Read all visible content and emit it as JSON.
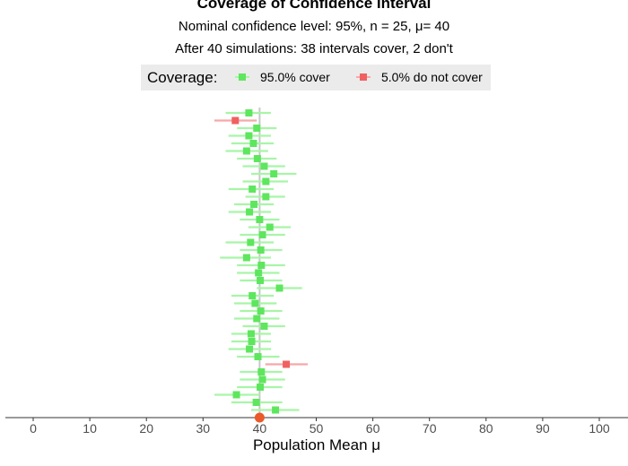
{
  "chart_data": {
    "type": "scatter",
    "title": "Coverage of Confidence Interval",
    "subtitle": "Nominal confidence level: 95%, n = 25, μ= 40",
    "subtitle2": "After 40 simulations: 38 intervals cover, 2 don't",
    "xlabel": "Population Mean μ",
    "xlim": [
      -5,
      105
    ],
    "xticks": [
      "0",
      "10",
      "20",
      "30",
      "40",
      "50",
      "60",
      "70",
      "80",
      "90",
      "100"
    ],
    "population_mean": 40,
    "legend": {
      "title": "Coverage:",
      "position": "top",
      "entries": [
        {
          "label": "95.0% cover",
          "color": "#33e633"
        },
        {
          "label": "5.0% do not cover",
          "color": "#f03c3c"
        }
      ]
    },
    "grid": false,
    "intervals": [
      {
        "mean": 38.1,
        "lower": 34.0,
        "upper": 42.0,
        "covers": true
      },
      {
        "mean": 35.7,
        "lower": 32.0,
        "upper": 39.5,
        "covers": false
      },
      {
        "mean": 39.5,
        "lower": 36.0,
        "upper": 43.0,
        "covers": true
      },
      {
        "mean": 38.1,
        "lower": 34.5,
        "upper": 42.0,
        "covers": true
      },
      {
        "mean": 38.9,
        "lower": 35.0,
        "upper": 42.5,
        "covers": true
      },
      {
        "mean": 37.7,
        "lower": 34.0,
        "upper": 41.5,
        "covers": true
      },
      {
        "mean": 39.6,
        "lower": 36.0,
        "upper": 43.0,
        "covers": true
      },
      {
        "mean": 40.8,
        "lower": 37.0,
        "upper": 44.5,
        "covers": true
      },
      {
        "mean": 42.5,
        "lower": 38.5,
        "upper": 46.5,
        "covers": true
      },
      {
        "mean": 41.1,
        "lower": 37.0,
        "upper": 45.0,
        "covers": true
      },
      {
        "mean": 38.7,
        "lower": 34.5,
        "upper": 42.5,
        "covers": true
      },
      {
        "mean": 41.1,
        "lower": 37.5,
        "upper": 44.5,
        "covers": true
      },
      {
        "mean": 39.0,
        "lower": 35.5,
        "upper": 42.5,
        "covers": true
      },
      {
        "mean": 38.2,
        "lower": 34.5,
        "upper": 42.0,
        "covers": true
      },
      {
        "mean": 40.0,
        "lower": 36.5,
        "upper": 43.5,
        "covers": true
      },
      {
        "mean": 41.8,
        "lower": 38.0,
        "upper": 45.5,
        "covers": true
      },
      {
        "mean": 40.5,
        "lower": 36.5,
        "upper": 44.5,
        "covers": true
      },
      {
        "mean": 38.4,
        "lower": 34.0,
        "upper": 42.5,
        "covers": true
      },
      {
        "mean": 40.2,
        "lower": 36.5,
        "upper": 44.0,
        "covers": true
      },
      {
        "mean": 37.7,
        "lower": 33.0,
        "upper": 42.0,
        "covers": true
      },
      {
        "mean": 40.3,
        "lower": 36.0,
        "upper": 44.5,
        "covers": true
      },
      {
        "mean": 39.8,
        "lower": 36.0,
        "upper": 43.5,
        "covers": true
      },
      {
        "mean": 40.1,
        "lower": 36.5,
        "upper": 44.0,
        "covers": true
      },
      {
        "mean": 43.5,
        "lower": 39.5,
        "upper": 47.5,
        "covers": true
      },
      {
        "mean": 38.7,
        "lower": 35.0,
        "upper": 42.5,
        "covers": true
      },
      {
        "mean": 39.2,
        "lower": 35.5,
        "upper": 43.0,
        "covers": true
      },
      {
        "mean": 40.2,
        "lower": 36.5,
        "upper": 44.0,
        "covers": true
      },
      {
        "mean": 39.5,
        "lower": 35.5,
        "upper": 43.5,
        "covers": true
      },
      {
        "mean": 40.8,
        "lower": 37.0,
        "upper": 44.5,
        "covers": true
      },
      {
        "mean": 38.5,
        "lower": 35.0,
        "upper": 42.0,
        "covers": true
      },
      {
        "mean": 38.6,
        "lower": 35.0,
        "upper": 42.0,
        "covers": true
      },
      {
        "mean": 38.2,
        "lower": 34.5,
        "upper": 42.0,
        "covers": true
      },
      {
        "mean": 39.7,
        "lower": 36.0,
        "upper": 43.5,
        "covers": true
      },
      {
        "mean": 44.7,
        "lower": 41.0,
        "upper": 48.5,
        "covers": false
      },
      {
        "mean": 40.3,
        "lower": 36.5,
        "upper": 44.0,
        "covers": true
      },
      {
        "mean": 40.5,
        "lower": 36.5,
        "upper": 44.5,
        "covers": true
      },
      {
        "mean": 40.1,
        "lower": 36.0,
        "upper": 44.0,
        "covers": true
      },
      {
        "mean": 35.9,
        "lower": 32.0,
        "upper": 40.0,
        "covers": true
      },
      {
        "mean": 39.4,
        "lower": 35.0,
        "upper": 44.0,
        "covers": true
      },
      {
        "mean": 42.8,
        "lower": 38.5,
        "upper": 47.0,
        "covers": true
      }
    ]
  }
}
